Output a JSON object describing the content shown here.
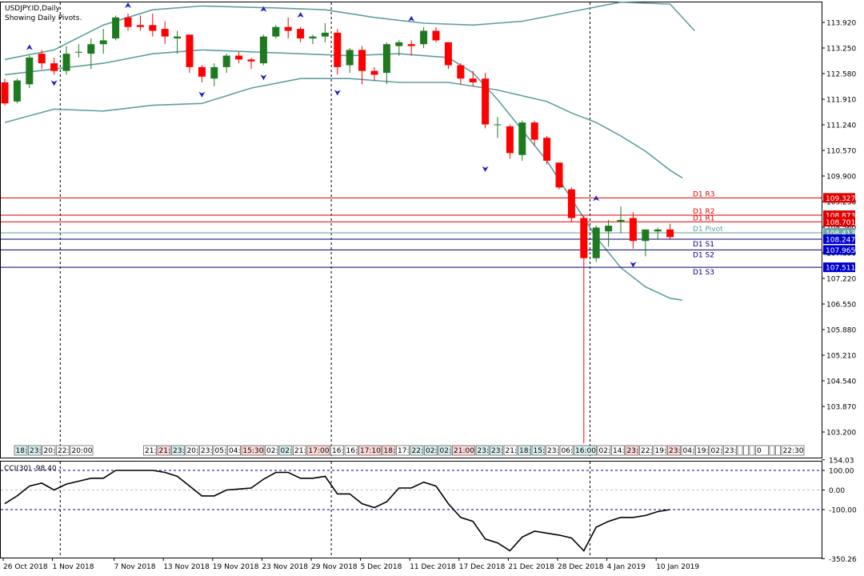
{
  "header": {
    "symbol_line": "USDJPY.ID,Daily",
    "indicator_line": "Showing Daily Pivots."
  },
  "colors": {
    "bull": "#1f7a1f",
    "bear": "#ff0000",
    "band": "#5f9ea0",
    "resistance": "#e00000",
    "support": "#00007a",
    "pivot": "#5f9ea0",
    "fractal": "#2020c0",
    "cci": "#000000"
  },
  "chart_data": {
    "type": "candlestick",
    "price_axis": {
      "ticks": [
        "113.920",
        "113.250",
        "112.580",
        "111.910",
        "111.240",
        "110.570",
        "109.900",
        "109.230",
        "108.560",
        "107.890",
        "107.220",
        "106.550",
        "105.880",
        "105.210",
        "104.540",
        "103.870",
        "103.200"
      ]
    },
    "x_axis": {
      "date_labels": [
        {
          "i": 0,
          "label": "26 Oct 2018"
        },
        {
          "i": 4,
          "label": "1 Nov 2018"
        },
        {
          "i": 9,
          "label": "7 Nov 2018"
        },
        {
          "i": 13,
          "label": "13 Nov 2018"
        },
        {
          "i": 17,
          "label": "19 Nov 2018"
        },
        {
          "i": 21,
          "label": "23 Nov 2018"
        },
        {
          "i": 25,
          "label": "29 Nov 2018"
        },
        {
          "i": 29,
          "label": "5 Dec 2018"
        },
        {
          "i": 33,
          "label": "11 Dec 2018"
        },
        {
          "i": 37,
          "label": "17 Dec 2018"
        },
        {
          "i": 41,
          "label": "21 Dec 2018"
        },
        {
          "i": 45,
          "label": "28 Dec 2018"
        },
        {
          "i": 49,
          "label": "4 Jan 2019"
        },
        {
          "i": 53,
          "label": "10 Jan 2019"
        }
      ],
      "separators": [
        4,
        26,
        47
      ]
    },
    "candles": [
      {
        "o": 112.35,
        "h": 112.45,
        "l": 111.75,
        "c": 111.8
      },
      {
        "o": 111.85,
        "h": 112.45,
        "l": 111.8,
        "c": 112.4
      },
      {
        "o": 112.3,
        "h": 113.05,
        "l": 112.2,
        "c": 113.0
      },
      {
        "o": 113.1,
        "h": 113.2,
        "l": 112.7,
        "c": 112.85
      },
      {
        "o": 112.85,
        "h": 113.0,
        "l": 112.55,
        "c": 112.65
      },
      {
        "o": 112.65,
        "h": 113.3,
        "l": 112.55,
        "c": 113.1
      },
      {
        "o": 113.15,
        "h": 113.35,
        "l": 113.0,
        "c": 113.15
      },
      {
        "o": 113.1,
        "h": 113.5,
        "l": 112.7,
        "c": 113.35
      },
      {
        "o": 113.35,
        "h": 113.75,
        "l": 113.1,
        "c": 113.45
      },
      {
        "o": 113.5,
        "h": 114.1,
        "l": 113.45,
        "c": 114.05
      },
      {
        "o": 114.05,
        "h": 114.15,
        "l": 113.7,
        "c": 113.8
      },
      {
        "o": 113.85,
        "h": 114.1,
        "l": 113.7,
        "c": 113.8
      },
      {
        "o": 113.85,
        "h": 114.15,
        "l": 113.55,
        "c": 113.7
      },
      {
        "o": 113.75,
        "h": 113.95,
        "l": 113.35,
        "c": 113.55
      },
      {
        "o": 113.5,
        "h": 113.7,
        "l": 113.1,
        "c": 113.55
      },
      {
        "o": 113.6,
        "h": 113.6,
        "l": 112.6,
        "c": 112.75
      },
      {
        "o": 112.75,
        "h": 112.8,
        "l": 112.35,
        "c": 112.5
      },
      {
        "o": 112.45,
        "h": 112.85,
        "l": 112.25,
        "c": 112.75
      },
      {
        "o": 112.75,
        "h": 113.1,
        "l": 112.6,
        "c": 113.05
      },
      {
        "o": 113.05,
        "h": 113.15,
        "l": 112.85,
        "c": 112.95
      },
      {
        "o": 112.95,
        "h": 113.0,
        "l": 112.7,
        "c": 112.9
      },
      {
        "o": 112.85,
        "h": 113.6,
        "l": 112.8,
        "c": 113.55
      },
      {
        "o": 113.55,
        "h": 113.85,
        "l": 113.5,
        "c": 113.8
      },
      {
        "o": 113.8,
        "h": 114.05,
        "l": 113.5,
        "c": 113.7
      },
      {
        "o": 113.75,
        "h": 113.8,
        "l": 113.4,
        "c": 113.5
      },
      {
        "o": 113.5,
        "h": 113.6,
        "l": 113.35,
        "c": 113.55
      },
      {
        "o": 113.55,
        "h": 113.9,
        "l": 113.4,
        "c": 113.65
      },
      {
        "o": 113.65,
        "h": 113.75,
        "l": 112.55,
        "c": 112.75
      },
      {
        "o": 112.8,
        "h": 113.25,
        "l": 112.6,
        "c": 113.2
      },
      {
        "o": 113.2,
        "h": 113.3,
        "l": 112.3,
        "c": 112.65
      },
      {
        "o": 112.65,
        "h": 112.75,
        "l": 112.4,
        "c": 112.55
      },
      {
        "o": 112.6,
        "h": 113.4,
        "l": 112.3,
        "c": 113.35
      },
      {
        "o": 113.3,
        "h": 113.45,
        "l": 113.05,
        "c": 113.4
      },
      {
        "o": 113.35,
        "h": 113.45,
        "l": 113.05,
        "c": 113.3
      },
      {
        "o": 113.35,
        "h": 113.8,
        "l": 113.25,
        "c": 113.7
      },
      {
        "o": 113.7,
        "h": 113.8,
        "l": 113.4,
        "c": 113.45
      },
      {
        "o": 113.4,
        "h": 113.4,
        "l": 112.7,
        "c": 112.8
      },
      {
        "o": 112.8,
        "h": 112.85,
        "l": 112.3,
        "c": 112.45
      },
      {
        "o": 112.45,
        "h": 112.65,
        "l": 112.25,
        "c": 112.35
      },
      {
        "o": 112.45,
        "h": 112.6,
        "l": 111.15,
        "c": 111.25
      },
      {
        "o": 111.25,
        "h": 111.45,
        "l": 110.9,
        "c": 111.25
      },
      {
        "o": 111.2,
        "h": 111.25,
        "l": 110.35,
        "c": 110.5
      },
      {
        "o": 110.45,
        "h": 111.35,
        "l": 110.3,
        "c": 111.3
      },
      {
        "o": 111.3,
        "h": 111.35,
        "l": 110.7,
        "c": 110.85
      },
      {
        "o": 110.9,
        "h": 110.95,
        "l": 110.2,
        "c": 110.3
      },
      {
        "o": 110.25,
        "h": 110.25,
        "l": 109.55,
        "c": 109.6
      },
      {
        "o": 109.55,
        "h": 109.6,
        "l": 108.7,
        "c": 108.8
      },
      {
        "o": 108.8,
        "h": 108.85,
        "l": 102.9,
        "c": 107.75
      },
      {
        "o": 107.75,
        "h": 108.6,
        "l": 107.65,
        "c": 108.55
      },
      {
        "o": 108.45,
        "h": 108.75,
        "l": 108.05,
        "c": 108.6
      },
      {
        "o": 108.7,
        "h": 109.1,
        "l": 108.4,
        "c": 108.75
      },
      {
        "o": 108.8,
        "h": 108.95,
        "l": 108.0,
        "c": 108.2
      },
      {
        "o": 108.2,
        "h": 108.5,
        "l": 107.8,
        "c": 108.5
      },
      {
        "o": 108.45,
        "h": 108.55,
        "l": 108.25,
        "c": 108.5
      },
      {
        "o": 108.5,
        "h": 108.65,
        "l": 108.25,
        "c": 108.3
      }
    ],
    "bands": {
      "upper": [
        {
          "i": 0,
          "v": 112.95
        },
        {
          "i": 4,
          "v": 113.2
        },
        {
          "i": 8,
          "v": 113.85
        },
        {
          "i": 12,
          "v": 114.25
        },
        {
          "i": 16,
          "v": 114.35
        },
        {
          "i": 22,
          "v": 114.3
        },
        {
          "i": 26,
          "v": 114.25
        },
        {
          "i": 30,
          "v": 114.05
        },
        {
          "i": 34,
          "v": 113.9
        },
        {
          "i": 38,
          "v": 113.85
        },
        {
          "i": 42,
          "v": 113.95
        },
        {
          "i": 46,
          "v": 114.2
        },
        {
          "i": 50,
          "v": 114.45
        },
        {
          "i": 54,
          "v": 114.4
        },
        {
          "i": 56,
          "v": 113.7
        }
      ],
      "middle": [
        {
          "i": 0,
          "v": 112.55
        },
        {
          "i": 4,
          "v": 112.7
        },
        {
          "i": 8,
          "v": 112.85
        },
        {
          "i": 12,
          "v": 113.1
        },
        {
          "i": 16,
          "v": 113.2
        },
        {
          "i": 20,
          "v": 113.15
        },
        {
          "i": 24,
          "v": 113.1
        },
        {
          "i": 28,
          "v": 113.05
        },
        {
          "i": 32,
          "v": 113.1
        },
        {
          "i": 36,
          "v": 113.0
        },
        {
          "i": 38,
          "v": 112.6
        },
        {
          "i": 40,
          "v": 111.9
        },
        {
          "i": 42,
          "v": 111.1
        },
        {
          "i": 44,
          "v": 110.3
        },
        {
          "i": 46,
          "v": 109.3
        },
        {
          "i": 48,
          "v": 108.3
        },
        {
          "i": 50,
          "v": 107.5
        },
        {
          "i": 52,
          "v": 107.0
        },
        {
          "i": 54,
          "v": 106.7
        },
        {
          "i": 55,
          "v": 106.65
        }
      ],
      "lower": [
        {
          "i": 0,
          "v": 111.3
        },
        {
          "i": 4,
          "v": 111.65
        },
        {
          "i": 8,
          "v": 111.6
        },
        {
          "i": 12,
          "v": 111.75
        },
        {
          "i": 16,
          "v": 111.8
        },
        {
          "i": 20,
          "v": 112.2
        },
        {
          "i": 24,
          "v": 112.45
        },
        {
          "i": 28,
          "v": 112.45
        },
        {
          "i": 32,
          "v": 112.35
        },
        {
          "i": 36,
          "v": 112.35
        },
        {
          "i": 40,
          "v": 112.15
        },
        {
          "i": 44,
          "v": 111.85
        },
        {
          "i": 46,
          "v": 111.55
        },
        {
          "i": 48,
          "v": 111.3
        },
        {
          "i": 50,
          "v": 110.95
        },
        {
          "i": 52,
          "v": 110.55
        },
        {
          "i": 54,
          "v": 110.05
        },
        {
          "i": 55,
          "v": 109.85
        }
      ]
    },
    "pivots": [
      {
        "name": "D1 R3",
        "value": 109.327,
        "label": "109.327",
        "kind": "resistance"
      },
      {
        "name": "D1 R2",
        "value": 108.873,
        "label": "108.873",
        "kind": "resistance"
      },
      {
        "name": "D1 R1",
        "value": 108.701,
        "label": "108.701",
        "kind": "resistance"
      },
      {
        "name": "D1 Pivot",
        "value": 108.413,
        "label": "108.413",
        "kind": "pivot"
      },
      {
        "name": "D1 S1",
        "value": 108.247,
        "label": "108.247",
        "kind": "support"
      },
      {
        "name": "D1 S2",
        "value": 107.965,
        "label": "107.965",
        "kind": "support"
      },
      {
        "name": "D1 S3",
        "value": 107.511,
        "label": "107.511",
        "kind": "support"
      }
    ],
    "fractals": {
      "up": [
        {
          "i": 2,
          "v": 113.05
        },
        {
          "i": 10,
          "v": 114.15
        },
        {
          "i": 21,
          "v": 114.05
        },
        {
          "i": 24,
          "v": 113.9
        },
        {
          "i": 33,
          "v": 113.8
        },
        {
          "i": 48,
          "v": 109.1
        }
      ],
      "down": [
        {
          "i": 4,
          "v": 112.55
        },
        {
          "i": 16,
          "v": 112.25
        },
        {
          "i": 21,
          "v": 112.7
        },
        {
          "i": 27,
          "v": 112.3
        },
        {
          "i": 39,
          "v": 110.3
        },
        {
          "i": 51,
          "v": 107.8
        }
      ]
    },
    "time_boxes": [
      {
        "label": "18:",
        "color": "#d8f0f0"
      },
      {
        "label": "23:",
        "color": "#d8f0f0"
      },
      {
        "label": "20:",
        "color": "#ffffff"
      },
      {
        "label": "22:",
        "color": "#ffffff"
      },
      {
        "label": "20:00",
        "color": "#ffffff"
      },
      {
        "gap": true
      },
      {
        "label": "21:",
        "color": "#ffffff"
      },
      {
        "label": "21:",
        "color": "#ffd8d8"
      },
      {
        "label": "23:",
        "color": "#d8f0f0"
      },
      {
        "label": "20:",
        "color": "#ffffff"
      },
      {
        "label": "23:",
        "color": "#ffffff"
      },
      {
        "label": "05:",
        "color": "#ffffff"
      },
      {
        "label": "04:",
        "color": "#ffffff"
      },
      {
        "label": "15:30",
        "color": "#ffd8d8"
      },
      {
        "label": "02:",
        "color": "#ffffff"
      },
      {
        "label": "02:",
        "color": "#d8f0f0"
      },
      {
        "label": "21:",
        "color": "#ffffff"
      },
      {
        "label": "17:00",
        "color": "#ffd8d8"
      },
      {
        "label": "16:",
        "color": "#ffffff"
      },
      {
        "label": "16:",
        "color": "#ffffff"
      },
      {
        "label": "17:10",
        "color": "#ffd8d8"
      },
      {
        "label": "18:",
        "color": "#ffd8d8"
      },
      {
        "label": "17:",
        "color": "#ffffff"
      },
      {
        "label": "22:",
        "color": "#d8f0f0"
      },
      {
        "label": "02:",
        "color": "#d8f0f0"
      },
      {
        "label": "02:",
        "color": "#d8f0f0"
      },
      {
        "label": "21:00",
        "color": "#ffd8d8"
      },
      {
        "label": "23:",
        "color": "#d8f0f0"
      },
      {
        "label": "23:",
        "color": "#d8f0f0"
      },
      {
        "label": "21:",
        "color": "#ffffff"
      },
      {
        "label": "18:",
        "color": "#d8f0f0"
      },
      {
        "label": "15:",
        "color": "#d8f0f0"
      },
      {
        "label": "23:",
        "color": "#ffffff"
      },
      {
        "label": "06:",
        "color": "#ffffff"
      },
      {
        "label": "16:00",
        "color": "#d8f0f0"
      },
      {
        "label": "02:",
        "color": "#ffffff"
      },
      {
        "label": "14:",
        "color": "#ffffff"
      },
      {
        "label": "23:",
        "color": "#ffd8d8"
      },
      {
        "label": "22:",
        "color": "#ffffff"
      },
      {
        "label": "19:",
        "color": "#ffffff"
      },
      {
        "label": "23:",
        "color": "#ffd8d8"
      },
      {
        "label": "04:",
        "color": "#ffffff"
      },
      {
        "label": "19:",
        "color": "#ffffff"
      },
      {
        "label": "02:",
        "color": "#ffffff"
      },
      {
        "label": "23:",
        "color": "#ffffff"
      },
      {
        "label": "",
        "color": "#ffffff"
      },
      {
        "label": "",
        "color": "#ffffff"
      },
      {
        "label": "",
        "color": "#ffffff"
      },
      {
        "label": "0",
        "color": "#ffffff"
      },
      {
        "label": "",
        "color": "#ffffff"
      },
      {
        "label": "",
        "color": "#ffffff"
      },
      {
        "label": "22:30",
        "color": "#ffffff"
      }
    ],
    "cci": {
      "title": "CCI(30) -98.40",
      "axis_labels": [
        "154.03",
        "100.00",
        "0.00",
        "-100.00",
        "-350.26"
      ],
      "values": [
        {
          "i": 0,
          "v": -70
        },
        {
          "i": 1,
          "v": -30
        },
        {
          "i": 2,
          "v": 20
        },
        {
          "i": 3,
          "v": 35
        },
        {
          "i": 4,
          "v": 0
        },
        {
          "i": 5,
          "v": 30
        },
        {
          "i": 6,
          "v": 45
        },
        {
          "i": 7,
          "v": 60
        },
        {
          "i": 8,
          "v": 60
        },
        {
          "i": 9,
          "v": 100
        },
        {
          "i": 10,
          "v": 100
        },
        {
          "i": 11,
          "v": 100
        },
        {
          "i": 12,
          "v": 100
        },
        {
          "i": 13,
          "v": 90
        },
        {
          "i": 14,
          "v": 70
        },
        {
          "i": 15,
          "v": 20
        },
        {
          "i": 16,
          "v": -30
        },
        {
          "i": 17,
          "v": -30
        },
        {
          "i": 18,
          "v": 0
        },
        {
          "i": 19,
          "v": 5
        },
        {
          "i": 20,
          "v": 10
        },
        {
          "i": 21,
          "v": 55
        },
        {
          "i": 22,
          "v": 90
        },
        {
          "i": 23,
          "v": 90
        },
        {
          "i": 24,
          "v": 60
        },
        {
          "i": 25,
          "v": 60
        },
        {
          "i": 26,
          "v": 70
        },
        {
          "i": 27,
          "v": -20
        },
        {
          "i": 28,
          "v": -20
        },
        {
          "i": 29,
          "v": -70
        },
        {
          "i": 30,
          "v": -90
        },
        {
          "i": 31,
          "v": -60
        },
        {
          "i": 32,
          "v": 10
        },
        {
          "i": 33,
          "v": 10
        },
        {
          "i": 34,
          "v": 40
        },
        {
          "i": 35,
          "v": 20
        },
        {
          "i": 36,
          "v": -70
        },
        {
          "i": 37,
          "v": -140
        },
        {
          "i": 38,
          "v": -160
        },
        {
          "i": 39,
          "v": -250
        },
        {
          "i": 40,
          "v": -270
        },
        {
          "i": 41,
          "v": -310
        },
        {
          "i": 42,
          "v": -240
        },
        {
          "i": 43,
          "v": -210
        },
        {
          "i": 44,
          "v": -220
        },
        {
          "i": 45,
          "v": -230
        },
        {
          "i": 46,
          "v": -245
        },
        {
          "i": 47,
          "v": -310
        },
        {
          "i": 48,
          "v": -190
        },
        {
          "i": 49,
          "v": -160
        },
        {
          "i": 50,
          "v": -140
        },
        {
          "i": 51,
          "v": -140
        },
        {
          "i": 52,
          "v": -130
        },
        {
          "i": 53,
          "v": -110
        },
        {
          "i": 54,
          "v": -100
        }
      ]
    }
  }
}
